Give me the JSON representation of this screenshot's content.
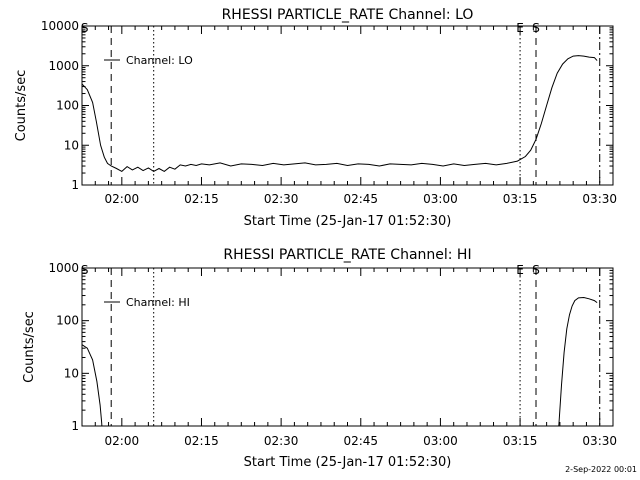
{
  "footer_date": "2-Sep-2022 00:01",
  "chart_data": [
    {
      "type": "line",
      "title": "RHESSI PARTICLE_RATE Channel: LO",
      "xlabel": "Start Time (25-Jan-17 01:52:30)",
      "ylabel": "Counts/sec",
      "yscale": "log",
      "ylim": [
        1,
        10000
      ],
      "y_ticks": [
        "1",
        "10",
        "100",
        "1000",
        "10000"
      ],
      "x_tick_labels": [
        "02:00",
        "02:15",
        "02:30",
        "02:45",
        "03:00",
        "03:15",
        "03:30"
      ],
      "xlim_minutes_from_start": [
        0,
        100
      ],
      "legend": {
        "label": "Channel: LO",
        "position": "top-left"
      },
      "series": [
        {
          "name": "Channel: LO",
          "x": [
            0,
            1,
            2,
            2.7,
            3.5,
            4.2,
            4.8,
            5.5,
            6.5,
            7.5,
            8.5,
            9.5,
            10.5,
            11.5,
            12.5,
            13.5,
            14.5,
            15.5,
            16.5,
            17.5,
            18.5,
            19.5,
            20.5,
            21.5,
            22.5,
            24,
            26,
            28,
            30,
            32,
            34,
            36,
            38,
            40,
            42,
            44,
            46,
            48,
            50,
            52,
            54,
            56,
            58,
            60,
            62,
            64,
            66,
            68,
            70,
            72,
            74,
            76,
            78,
            80,
            82,
            83.5,
            84.5,
            85.5,
            86.5,
            87.5,
            88.5,
            89.5,
            90.5,
            91.5,
            92.5,
            93.5,
            94.5,
            95.5,
            96.5,
            97
          ],
          "y": [
            350,
            250,
            120,
            40,
            10,
            5,
            3.5,
            3,
            2.6,
            2.2,
            2.9,
            2.4,
            2.8,
            2.3,
            2.7,
            2.2,
            2.6,
            2.2,
            2.8,
            2.5,
            3.2,
            3.0,
            3.3,
            3.1,
            3.4,
            3.2,
            3.6,
            3.0,
            3.4,
            3.3,
            3.1,
            3.5,
            3.2,
            3.4,
            3.6,
            3.2,
            3.3,
            3.5,
            3.1,
            3.4,
            3.3,
            3.0,
            3.4,
            3.3,
            3.2,
            3.5,
            3.3,
            3.0,
            3.4,
            3.1,
            3.3,
            3.5,
            3.2,
            3.5,
            4.0,
            5.2,
            7.5,
            14,
            35,
            100,
            280,
            650,
            1100,
            1500,
            1750,
            1800,
            1750,
            1650,
            1600,
            1350
          ]
        }
      ],
      "markers": [
        {
          "label": "S",
          "at_minutes": 0.5,
          "style": ""
        },
        {
          "label": "",
          "at_minutes": 5.5,
          "style": "dashed"
        },
        {
          "label": "",
          "at_minutes": 13.5,
          "style": "dotted"
        },
        {
          "label": "E",
          "at_minutes": 82.5,
          "style": "dotted"
        },
        {
          "label": "S",
          "at_minutes": 85.5,
          "style": "dashed"
        },
        {
          "label": "",
          "at_minutes": 97.5,
          "style": "dash-dot"
        }
      ]
    },
    {
      "type": "line",
      "title": "RHESSI PARTICLE_RATE Channel: HI",
      "xlabel": "Start Time (25-Jan-17 01:52:30)",
      "ylabel": "Counts/sec",
      "yscale": "log",
      "ylim": [
        1,
        1000
      ],
      "y_ticks": [
        "1",
        "10",
        "100",
        "1000"
      ],
      "x_tick_labels": [
        "02:00",
        "02:15",
        "02:30",
        "02:45",
        "03:00",
        "03:15",
        "03:30"
      ],
      "xlim_minutes_from_start": [
        0,
        100
      ],
      "legend": {
        "label": "Channel: HI",
        "position": "top-left"
      },
      "series": [
        {
          "name": "Channel: HI",
          "x": [
            0,
            1,
            2,
            2.8,
            3.4,
            3.7,
            3.75
          ],
          "y": [
            35,
            30,
            18,
            7,
            2.5,
            1.2,
            1
          ],
          "segment_2": {
            "x": [
              89.8,
              90.3,
              90.8,
              91.3,
              91.8,
              92.3,
              92.8,
              93.5,
              94.5,
              95.5,
              96.5,
              97
            ],
            "y": [
              1,
              6,
              25,
              70,
              130,
              190,
              240,
              270,
              275,
              260,
              240,
              220
            ]
          }
        }
      ],
      "markers": [
        {
          "label": "S",
          "at_minutes": 0.5,
          "style": ""
        },
        {
          "label": "",
          "at_minutes": 5.5,
          "style": "dashed"
        },
        {
          "label": "",
          "at_minutes": 13.5,
          "style": "dotted"
        },
        {
          "label": "E",
          "at_minutes": 82.5,
          "style": "dotted"
        },
        {
          "label": "S",
          "at_minutes": 85.5,
          "style": "dashed"
        },
        {
          "label": "",
          "at_minutes": 97.5,
          "style": "dash-dot"
        }
      ]
    }
  ]
}
